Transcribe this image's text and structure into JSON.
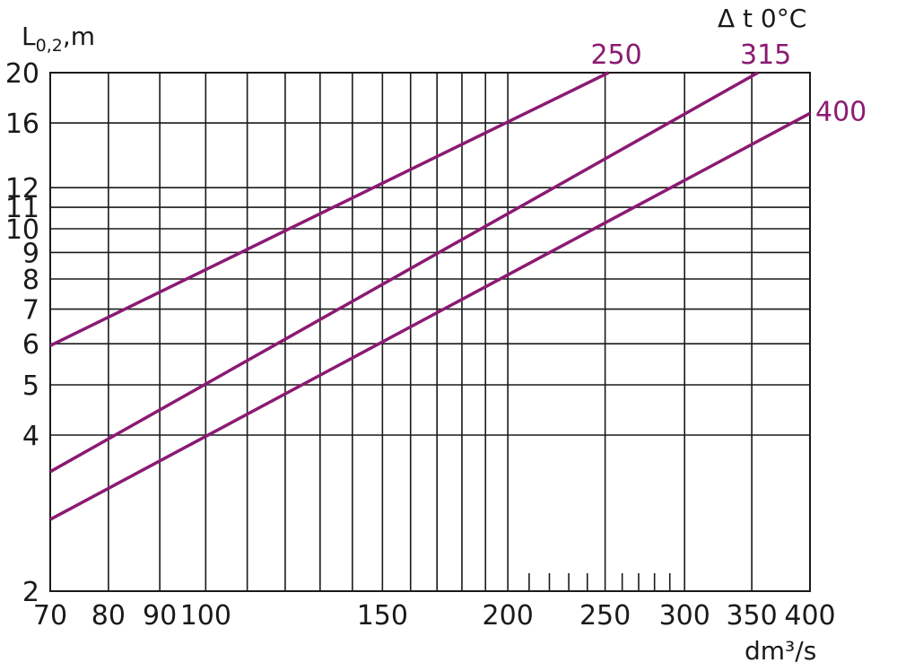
{
  "chart_data": {
    "type": "line",
    "y_label": "L",
    "y_label_sub": "0,2",
    "y_label_suffix": ",m",
    "x_label": "dm³/s",
    "legend_title": "Δ  t 0°C",
    "x_scale": "log",
    "y_scale": "log",
    "xlim": [
      70,
      400
    ],
    "ylim": [
      2,
      20
    ],
    "x_ticks": [
      70,
      80,
      90,
      100,
      150,
      200,
      250,
      300,
      350,
      400
    ],
    "x_minor_ticks": [
      210,
      220,
      230,
      240,
      260,
      270,
      280,
      290
    ],
    "x_gridlines": [
      70,
      80,
      90,
      100,
      110,
      120,
      130,
      140,
      150,
      160,
      170,
      180,
      190,
      200,
      250,
      300,
      350,
      400
    ],
    "y_ticks": [
      2,
      4,
      5,
      6,
      7,
      8,
      9,
      10,
      11,
      12,
      16,
      20
    ],
    "grid": true,
    "line_color": "#8b1a72",
    "series": [
      {
        "name": "250",
        "points": [
          [
            70,
            5.95
          ],
          [
            252,
            20
          ]
        ]
      },
      {
        "name": "315",
        "points": [
          [
            70,
            3.4
          ],
          [
            355,
            20
          ]
        ]
      },
      {
        "name": "400",
        "points": [
          [
            70,
            2.75
          ],
          [
            400,
            16.7
          ]
        ]
      }
    ]
  }
}
